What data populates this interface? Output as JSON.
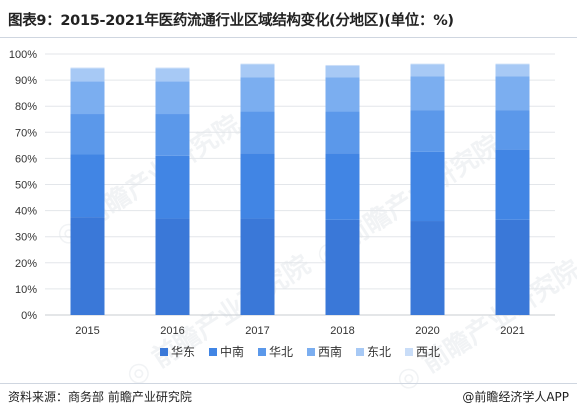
{
  "title": "图表9：2015-2021年医药流通行业区域结构变化(分地区)(单位：%)",
  "source": "资料来源：商务部 前瞻产业研究院",
  "credit": "@前瞻经济学人APP",
  "watermark": "前瞻产业研究院",
  "chart_data": {
    "type": "bar",
    "stacked": true,
    "categories": [
      "2015",
      "2016",
      "2017",
      "2018",
      "2020",
      "2021"
    ],
    "ylim": [
      0,
      100
    ],
    "yticks": [
      "0%",
      "10%",
      "20%",
      "30%",
      "40%",
      "50%",
      "60%",
      "70%",
      "80%",
      "90%",
      "100%"
    ],
    "grid": true,
    "legend_position": "bottom",
    "series": [
      {
        "name": "华东",
        "color": "#3a78d8",
        "values": [
          37.5,
          37.0,
          37.0,
          36.5,
          36.0,
          36.5
        ]
      },
      {
        "name": "中南",
        "color": "#4185e4",
        "values": [
          24.0,
          24.0,
          25.0,
          25.5,
          26.5,
          27.0
        ]
      },
      {
        "name": "华北",
        "color": "#5b98ea",
        "values": [
          15.5,
          16.0,
          16.0,
          16.0,
          16.0,
          15.0
        ]
      },
      {
        "name": "西南",
        "color": "#7baef0",
        "values": [
          12.5,
          12.5,
          13.0,
          13.0,
          13.0,
          13.0
        ]
      },
      {
        "name": "东北",
        "color": "#a7c9f5",
        "values": [
          5.0,
          5.0,
          5.0,
          4.5,
          4.5,
          4.5
        ]
      },
      {
        "name": "西北",
        "color": "#c9ddf8",
        "values": [
          0.3,
          0.3,
          0.3,
          0.3,
          0.3,
          0.3
        ]
      }
    ]
  }
}
